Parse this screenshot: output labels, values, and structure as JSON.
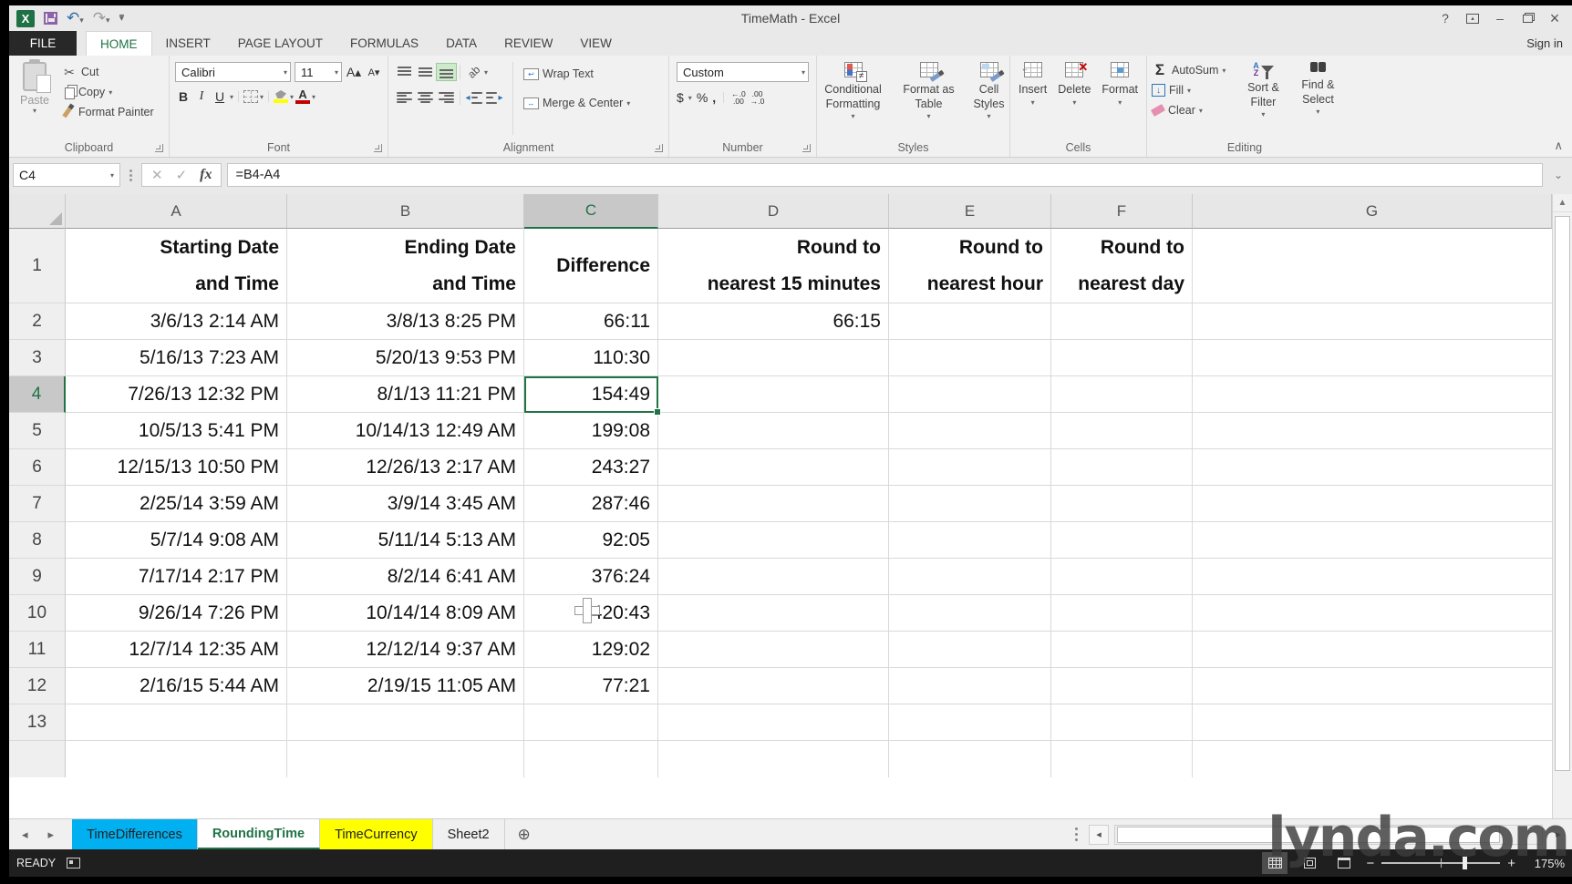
{
  "titlebar": {
    "title": "TimeMath - Excel",
    "help": "?",
    "sign_in": "Sign in"
  },
  "ribbon_tabs": {
    "file": "FILE",
    "items": [
      "HOME",
      "INSERT",
      "PAGE LAYOUT",
      "FORMULAS",
      "DATA",
      "REVIEW",
      "VIEW"
    ],
    "active": "HOME"
  },
  "ribbon": {
    "clipboard": {
      "label": "Clipboard",
      "paste": "Paste",
      "cut": "Cut",
      "copy": "Copy",
      "format_painter": "Format Painter"
    },
    "font": {
      "label": "Font",
      "name": "Calibri",
      "size": "11",
      "bold": "B",
      "italic": "I",
      "underline": "U"
    },
    "alignment": {
      "label": "Alignment",
      "wrap": "Wrap Text",
      "merge": "Merge & Center"
    },
    "number": {
      "label": "Number",
      "format": "Custom",
      "currency": "$",
      "percent": "%",
      "comma": ","
    },
    "styles": {
      "label": "Styles",
      "conditional": "Conditional Formatting",
      "format_table": "Format as Table",
      "cell_styles": "Cell Styles"
    },
    "cells": {
      "label": "Cells",
      "insert": "Insert",
      "delete": "Delete",
      "format": "Format"
    },
    "editing": {
      "label": "Editing",
      "autosum": "AutoSum",
      "fill": "Fill",
      "clear": "Clear",
      "sort_filter": "Sort & Filter",
      "find_select": "Find & Select"
    }
  },
  "formula_bar": {
    "name_box": "C4",
    "fx": "fx",
    "formula": "=B4-A4"
  },
  "grid": {
    "columns": [
      "A",
      "B",
      "C",
      "D",
      "E",
      "F",
      "G"
    ],
    "selected_column": "C",
    "selected_row": 4,
    "rows": [
      {
        "n": "1",
        "bold": true,
        "cells": {
          "A": "Starting Date\nand Time",
          "B": "Ending Date\nand Time",
          "C": "Difference",
          "D": "Round to\nnearest 15 minutes",
          "E": "Round to\nnearest hour",
          "F": "Round to\nnearest day"
        }
      },
      {
        "n": "2",
        "cells": {
          "A": "3/6/13 2:14 AM",
          "B": "3/8/13 8:25 PM",
          "C": "66:11",
          "D": "66:15"
        }
      },
      {
        "n": "3",
        "cells": {
          "A": "5/16/13 7:23 AM",
          "B": "5/20/13 9:53 PM",
          "C": "110:30"
        }
      },
      {
        "n": "4",
        "cells": {
          "A": "7/26/13 12:32 PM",
          "B": "8/1/13 11:21 PM",
          "C": "154:49"
        }
      },
      {
        "n": "5",
        "cells": {
          "A": "10/5/13 5:41 PM",
          "B": "10/14/13 12:49 AM",
          "C": "199:08"
        }
      },
      {
        "n": "6",
        "cells": {
          "A": "12/15/13 10:50 PM",
          "B": "12/26/13 2:17 AM",
          "C": "243:27"
        }
      },
      {
        "n": "7",
        "cells": {
          "A": "2/25/14 3:59 AM",
          "B": "3/9/14 3:45 AM",
          "C": "287:46"
        }
      },
      {
        "n": "8",
        "cells": {
          "A": "5/7/14 9:08 AM",
          "B": "5/11/14 5:13 AM",
          "C": "92:05"
        }
      },
      {
        "n": "9",
        "cells": {
          "A": "7/17/14 2:17 PM",
          "B": "8/2/14 6:41 AM",
          "C": "376:24"
        }
      },
      {
        "n": "10",
        "cells": {
          "A": "9/26/14 7:26 PM",
          "B": "10/14/14 8:09 AM",
          "C": "420:43"
        }
      },
      {
        "n": "11",
        "cells": {
          "A": "12/7/14 12:35 AM",
          "B": "12/12/14 9:37 AM",
          "C": "129:02"
        }
      },
      {
        "n": "12",
        "cells": {
          "A": "2/16/15 5:44 AM",
          "B": "2/19/15 11:05 AM",
          "C": "77:21"
        }
      },
      {
        "n": "13",
        "cells": {}
      }
    ]
  },
  "sheet_bar": {
    "tabs": [
      {
        "label": "TimeDifferences",
        "color": "#00b0f0"
      },
      {
        "label": "RoundingTime",
        "active": true
      },
      {
        "label": "TimeCurrency",
        "color": "#ffff00"
      },
      {
        "label": "Sheet2"
      }
    ]
  },
  "status_bar": {
    "mode": "READY",
    "zoom": "175%"
  },
  "watermark": "lynda.com",
  "colors": {
    "accent": "#217346",
    "tab_cyan": "#00b0f0",
    "tab_yellow": "#ffff00",
    "fill_yellow": "#ffff00",
    "font_red": "#c00000"
  }
}
